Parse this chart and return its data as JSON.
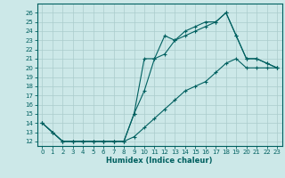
{
  "xlabel": "Humidex (Indice chaleur)",
  "bg_color": "#cce8e8",
  "line_color": "#006060",
  "grid_color": "#aacccc",
  "xlim": [
    -0.5,
    23.5
  ],
  "ylim": [
    11.5,
    27
  ],
  "xticks": [
    0,
    1,
    2,
    3,
    4,
    5,
    6,
    7,
    8,
    9,
    10,
    11,
    12,
    13,
    14,
    15,
    16,
    17,
    18,
    19,
    20,
    21,
    22,
    23
  ],
  "yticks": [
    12,
    13,
    14,
    15,
    16,
    17,
    18,
    19,
    20,
    21,
    22,
    23,
    24,
    25,
    26
  ],
  "line1_x": [
    0,
    1,
    2,
    3,
    4,
    5,
    6,
    7,
    8,
    9,
    10,
    11,
    12,
    13,
    14,
    15,
    16,
    17,
    18,
    19,
    20,
    21,
    22,
    23
  ],
  "line1_y": [
    14,
    13,
    12,
    12,
    12,
    12,
    12,
    12,
    12,
    12.5,
    13.5,
    14.5,
    15.5,
    16.5,
    17.5,
    18,
    18.5,
    19.5,
    20.5,
    21,
    20,
    20,
    20,
    20
  ],
  "line2_x": [
    0,
    1,
    2,
    3,
    4,
    5,
    6,
    7,
    8,
    9,
    10,
    11,
    12,
    13,
    14,
    15,
    16,
    17,
    18,
    19,
    20,
    21,
    22,
    23
  ],
  "line2_y": [
    14,
    13,
    12,
    12,
    12,
    12,
    12,
    12,
    12,
    15,
    21,
    21,
    23.5,
    23,
    24,
    24.5,
    25,
    25,
    26,
    23.5,
    21,
    21,
    20.5,
    20
  ],
  "line3_x": [
    0,
    1,
    2,
    3,
    4,
    5,
    6,
    7,
    8,
    9,
    10,
    11,
    12,
    13,
    14,
    15,
    16,
    17,
    18,
    19,
    20,
    21,
    22,
    23
  ],
  "line3_y": [
    14,
    13,
    12,
    12,
    12,
    12,
    12,
    12,
    12,
    15,
    17.5,
    21,
    21.5,
    23,
    23.5,
    24,
    24.5,
    25,
    26,
    23.5,
    21,
    21,
    20.5,
    20
  ]
}
